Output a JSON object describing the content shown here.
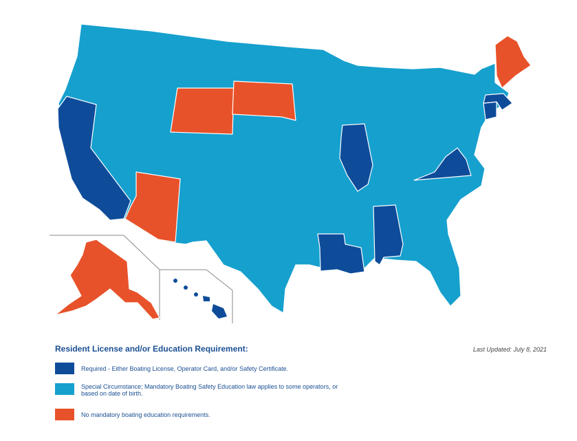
{
  "colors": {
    "required": "#0e4c9a",
    "special": "#16a0ce",
    "none": "#e8522a",
    "label_blue": "#1a4f93"
  },
  "legend": {
    "title": "Resident License and/or Education Requirement:",
    "last_updated": "Last Updated: July 8, 2021",
    "items": [
      {
        "key": "required",
        "label": "Required - Either Boating License, Operator Card, and/or Safety Certificate."
      },
      {
        "key": "special",
        "label": "Special Circumstance; Mandatory Boating Safety Education law applies to some operators, or based on date of birth."
      },
      {
        "key": "none",
        "label": "No mandatory boating education requirements."
      }
    ]
  },
  "map": {
    "states_by_category": {
      "required": [
        "California",
        "Illinois",
        "Virginia",
        "Louisiana",
        "Alabama",
        "Connecticut",
        "Massachusetts",
        "Hawaii"
      ],
      "none": [
        "Wyoming",
        "South Dakota",
        "Arizona",
        "Maine",
        "Alaska"
      ],
      "special": [
        "all other states"
      ]
    }
  }
}
